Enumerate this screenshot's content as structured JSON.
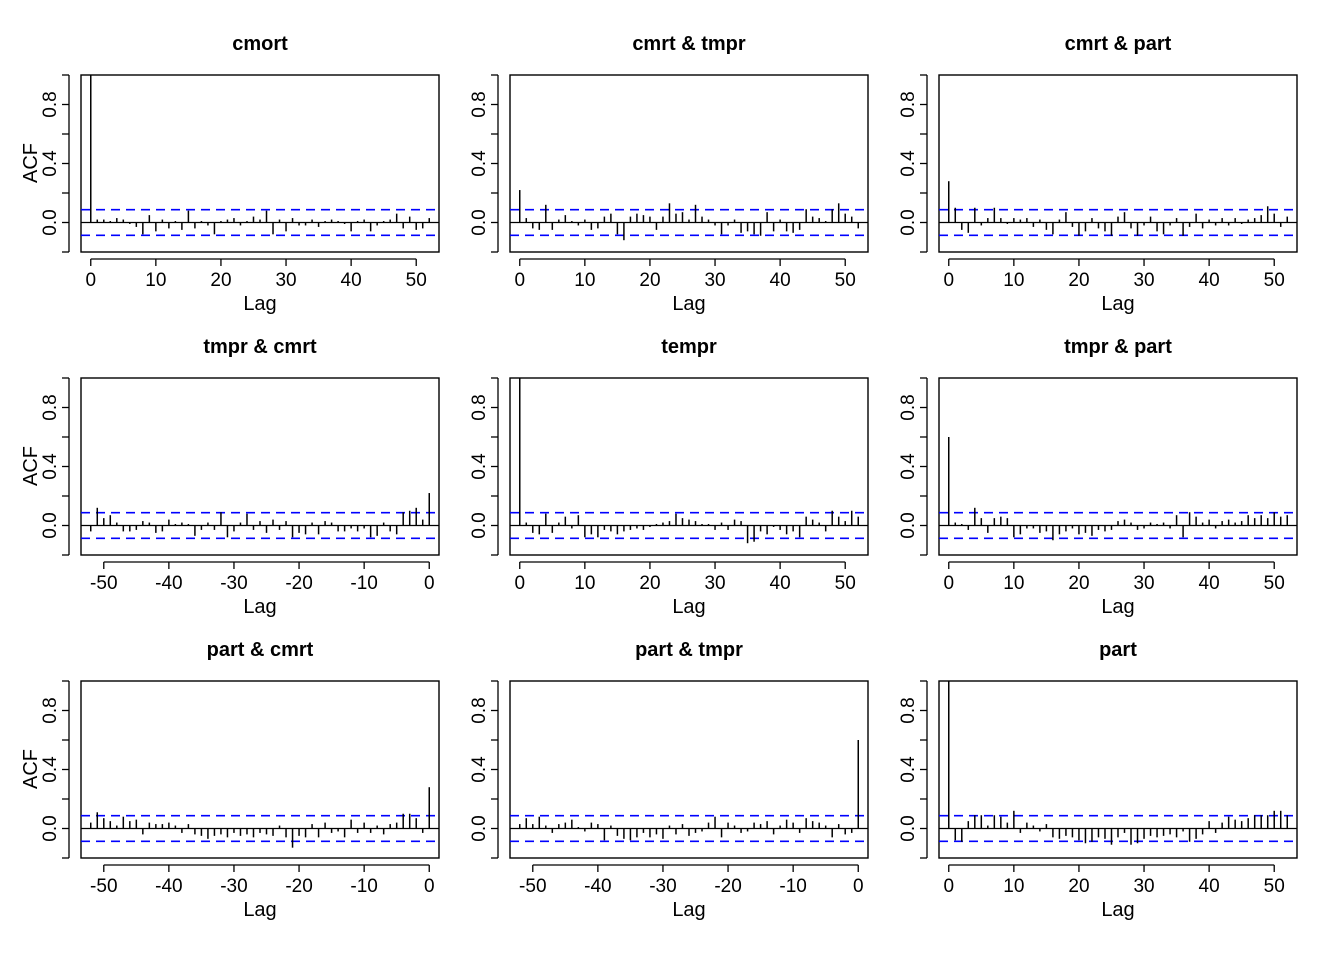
{
  "chart_data": [
    {
      "type": "bar",
      "title": "cmort",
      "xlabel": "Lag",
      "ylabel": "ACF",
      "xlim": [
        -1.5,
        53.5
      ],
      "ylim": [
        -0.2,
        1.0
      ],
      "x_ticks": [
        0,
        10,
        20,
        30,
        40,
        50
      ],
      "y_ticks": [
        0.0,
        0.4,
        0.8
      ],
      "conf_bound": 0.087,
      "x": [
        0,
        1,
        2,
        3,
        4,
        5,
        6,
        7,
        8,
        9,
        10,
        11,
        12,
        13,
        14,
        15,
        16,
        17,
        18,
        19,
        20,
        21,
        22,
        23,
        24,
        25,
        26,
        27,
        28,
        29,
        30,
        31,
        32,
        33,
        34,
        35,
        36,
        37,
        38,
        39,
        40,
        41,
        42,
        43,
        44,
        45,
        46,
        47,
        48,
        49,
        50,
        51,
        52
      ],
      "values": [
        1.0,
        0.02,
        0.02,
        0.01,
        0.03,
        0.02,
        -0.01,
        -0.03,
        -0.08,
        0.05,
        -0.06,
        0.02,
        -0.04,
        0.01,
        -0.05,
        0.08,
        -0.04,
        0.01,
        -0.02,
        -0.08,
        0.01,
        0.02,
        0.03,
        -0.02,
        0.01,
        0.04,
        0.02,
        0.08,
        -0.08,
        0.02,
        -0.06,
        0.03,
        -0.02,
        -0.02,
        0.02,
        -0.03,
        0.01,
        0.02,
        0.01,
        -0.01,
        -0.06,
        0.01,
        0.02,
        -0.06,
        -0.02,
        0.01,
        0.02,
        0.06,
        -0.04,
        0.04,
        -0.05,
        -0.04,
        0.03
      ]
    },
    {
      "type": "bar",
      "title": "cmrt & tmpr",
      "xlabel": "Lag",
      "ylabel": "",
      "xlim": [
        -1.5,
        53.5
      ],
      "ylim": [
        -0.2,
        1.0
      ],
      "x_ticks": [
        0,
        10,
        20,
        30,
        40,
        50
      ],
      "y_ticks": [
        0.0,
        0.4,
        0.8
      ],
      "conf_bound": 0.087,
      "x": [
        0,
        1,
        2,
        3,
        4,
        5,
        6,
        7,
        8,
        9,
        10,
        11,
        12,
        13,
        14,
        15,
        16,
        17,
        18,
        19,
        20,
        21,
        22,
        23,
        24,
        25,
        26,
        27,
        28,
        29,
        30,
        31,
        32,
        33,
        34,
        35,
        36,
        37,
        38,
        39,
        40,
        41,
        42,
        43,
        44,
        45,
        46,
        47,
        48,
        49,
        50,
        51,
        52
      ],
      "values": [
        0.22,
        0.03,
        -0.04,
        -0.05,
        0.12,
        -0.05,
        0.02,
        0.05,
        0.01,
        -0.02,
        0.02,
        -0.05,
        -0.04,
        0.04,
        0.06,
        -0.08,
        -0.12,
        0.04,
        0.06,
        0.05,
        0.04,
        -0.05,
        0.04,
        0.13,
        0.06,
        0.07,
        0.02,
        0.12,
        0.04,
        0.02,
        -0.02,
        -0.08,
        -0.02,
        0.02,
        -0.07,
        -0.06,
        -0.08,
        -0.09,
        0.07,
        -0.06,
        0.02,
        -0.06,
        -0.07,
        -0.05,
        0.09,
        0.04,
        0.03,
        0.01,
        0.09,
        0.13,
        0.06,
        0.04,
        -0.04
      ]
    },
    {
      "type": "bar",
      "title": "cmrt & part",
      "xlabel": "Lag",
      "ylabel": "",
      "xlim": [
        -1.5,
        53.5
      ],
      "ylim": [
        -0.2,
        1.0
      ],
      "x_ticks": [
        0,
        10,
        20,
        30,
        40,
        50
      ],
      "y_ticks": [
        0.0,
        0.4,
        0.8
      ],
      "conf_bound": 0.087,
      "x": [
        0,
        1,
        2,
        3,
        4,
        5,
        6,
        7,
        8,
        9,
        10,
        11,
        12,
        13,
        14,
        15,
        16,
        17,
        18,
        19,
        20,
        21,
        22,
        23,
        24,
        25,
        26,
        27,
        28,
        29,
        30,
        31,
        32,
        33,
        34,
        35,
        36,
        37,
        38,
        39,
        40,
        41,
        42,
        43,
        44,
        45,
        46,
        47,
        48,
        49,
        50,
        51,
        52
      ],
      "values": [
        0.28,
        0.1,
        -0.05,
        -0.07,
        0.1,
        -0.02,
        0.03,
        0.1,
        0.03,
        -0.01,
        0.03,
        0.02,
        0.03,
        -0.03,
        0.02,
        -0.05,
        -0.08,
        0.02,
        0.07,
        -0.03,
        -0.09,
        -0.06,
        0.03,
        -0.04,
        -0.06,
        -0.09,
        0.04,
        0.07,
        -0.04,
        -0.09,
        -0.02,
        0.04,
        -0.06,
        -0.08,
        -0.02,
        0.03,
        -0.09,
        -0.03,
        0.06,
        -0.04,
        0.02,
        -0.02,
        0.03,
        -0.02,
        0.03,
        -0.01,
        0.02,
        0.03,
        0.05,
        0.11,
        0.06,
        -0.03,
        0.04
      ]
    },
    {
      "type": "bar",
      "title": "tmpr & cmrt",
      "xlabel": "Lag",
      "ylabel": "ACF",
      "xlim": [
        -53.5,
        1.5
      ],
      "ylim": [
        -0.2,
        1.0
      ],
      "x_ticks": [
        -50,
        -40,
        -30,
        -20,
        -10,
        0
      ],
      "y_ticks": [
        0.0,
        0.4,
        0.8
      ],
      "conf_bound": 0.087,
      "x": [
        -52,
        -51,
        -50,
        -49,
        -48,
        -47,
        -46,
        -45,
        -44,
        -43,
        -42,
        -41,
        -40,
        -39,
        -38,
        -37,
        -36,
        -35,
        -34,
        -33,
        -32,
        -31,
        -30,
        -29,
        -28,
        -27,
        -26,
        -25,
        -24,
        -23,
        -22,
        -21,
        -20,
        -19,
        -18,
        -17,
        -16,
        -15,
        -14,
        -13,
        -12,
        -11,
        -10,
        -9,
        -8,
        -7,
        -6,
        -5,
        -4,
        -3,
        -2,
        -1,
        0
      ],
      "values": [
        -0.04,
        0.12,
        0.05,
        0.07,
        0.02,
        -0.04,
        -0.04,
        -0.03,
        0.03,
        0.02,
        -0.05,
        -0.04,
        0.04,
        0.01,
        0.02,
        0.01,
        -0.07,
        -0.03,
        0.02,
        -0.03,
        0.09,
        -0.08,
        -0.04,
        0.02,
        0.08,
        -0.03,
        0.03,
        -0.05,
        0.04,
        -0.03,
        0.03,
        -0.08,
        -0.05,
        -0.06,
        0.02,
        -0.06,
        0.03,
        0.02,
        -0.04,
        -0.04,
        -0.02,
        -0.04,
        -0.02,
        -0.08,
        -0.07,
        0.02,
        -0.04,
        -0.06,
        0.09,
        0.1,
        0.12,
        0.04,
        0.22
      ]
    },
    {
      "type": "bar",
      "title": "tempr",
      "xlabel": "Lag",
      "ylabel": "",
      "xlim": [
        -1.5,
        53.5
      ],
      "ylim": [
        -0.2,
        1.0
      ],
      "x_ticks": [
        0,
        10,
        20,
        30,
        40,
        50
      ],
      "y_ticks": [
        0.0,
        0.4,
        0.8
      ],
      "conf_bound": 0.087,
      "x": [
        0,
        1,
        2,
        3,
        4,
        5,
        6,
        7,
        8,
        9,
        10,
        11,
        12,
        13,
        14,
        15,
        16,
        17,
        18,
        19,
        20,
        21,
        22,
        23,
        24,
        25,
        26,
        27,
        28,
        29,
        30,
        31,
        32,
        33,
        34,
        35,
        36,
        37,
        38,
        39,
        40,
        41,
        42,
        43,
        44,
        45,
        46,
        47,
        48,
        49,
        50,
        51,
        52
      ],
      "values": [
        1.0,
        0.02,
        -0.05,
        -0.06,
        0.08,
        -0.05,
        0.02,
        0.06,
        -0.02,
        0.07,
        -0.08,
        -0.06,
        -0.08,
        -0.03,
        -0.04,
        -0.06,
        -0.04,
        -0.03,
        -0.02,
        -0.03,
        -0.01,
        0.01,
        0.02,
        0.03,
        0.08,
        0.05,
        0.04,
        0.03,
        0.01,
        0.01,
        -0.03,
        0.02,
        -0.03,
        0.04,
        0.03,
        -0.12,
        -0.11,
        -0.04,
        -0.06,
        -0.01,
        -0.03,
        -0.06,
        -0.04,
        -0.08,
        0.06,
        0.04,
        0.02,
        -0.04,
        0.1,
        0.06,
        0.03,
        0.1,
        0.06
      ]
    },
    {
      "type": "bar",
      "title": "tmpr & part",
      "xlabel": "Lag",
      "ylabel": "",
      "xlim": [
        -1.5,
        53.5
      ],
      "ylim": [
        -0.2,
        1.0
      ],
      "x_ticks": [
        0,
        10,
        20,
        30,
        40,
        50
      ],
      "y_ticks": [
        0.0,
        0.4,
        0.8
      ],
      "conf_bound": 0.087,
      "x": [
        0,
        1,
        2,
        3,
        4,
        5,
        6,
        7,
        8,
        9,
        10,
        11,
        12,
        13,
        14,
        15,
        16,
        17,
        18,
        19,
        20,
        21,
        22,
        23,
        24,
        25,
        26,
        27,
        28,
        29,
        30,
        31,
        32,
        33,
        34,
        35,
        36,
        37,
        38,
        39,
        40,
        41,
        42,
        43,
        44,
        45,
        46,
        47,
        48,
        49,
        50,
        51,
        52
      ],
      "values": [
        0.6,
        0.02,
        0.01,
        -0.03,
        0.12,
        0.05,
        -0.05,
        0.05,
        0.06,
        0.05,
        -0.08,
        -0.06,
        -0.02,
        -0.02,
        -0.05,
        -0.04,
        -0.1,
        -0.06,
        -0.04,
        -0.02,
        -0.06,
        -0.05,
        -0.07,
        -0.03,
        -0.04,
        -0.03,
        0.03,
        0.04,
        0.02,
        -0.03,
        -0.02,
        0.02,
        0.01,
        0.02,
        -0.02,
        0.07,
        -0.08,
        0.09,
        0.06,
        0.02,
        0.04,
        -0.02,
        0.03,
        0.04,
        0.02,
        0.03,
        0.07,
        0.05,
        0.07,
        0.05,
        0.09,
        0.06,
        0.07
      ]
    },
    {
      "type": "bar",
      "title": "part & cmrt",
      "xlabel": "Lag",
      "ylabel": "ACF",
      "xlim": [
        -53.5,
        1.5
      ],
      "ylim": [
        -0.2,
        1.0
      ],
      "x_ticks": [
        -50,
        -40,
        -30,
        -20,
        -10,
        0
      ],
      "y_ticks": [
        0.0,
        0.4,
        0.8
      ],
      "conf_bound": 0.087,
      "x": [
        -52,
        -51,
        -50,
        -49,
        -48,
        -47,
        -46,
        -45,
        -44,
        -43,
        -42,
        -41,
        -40,
        -39,
        -38,
        -37,
        -36,
        -35,
        -34,
        -33,
        -32,
        -31,
        -30,
        -29,
        -28,
        -27,
        -26,
        -25,
        -24,
        -23,
        -22,
        -21,
        -20,
        -19,
        -18,
        -17,
        -16,
        -15,
        -14,
        -13,
        -12,
        -11,
        -10,
        -9,
        -8,
        -7,
        -6,
        -5,
        -4,
        -3,
        -2,
        -1,
        0
      ],
      "values": [
        0.04,
        0.11,
        0.07,
        0.05,
        0.02,
        0.08,
        0.05,
        0.06,
        -0.04,
        0.04,
        0.03,
        0.03,
        0.04,
        0.02,
        -0.03,
        0.03,
        -0.04,
        -0.05,
        -0.07,
        -0.05,
        -0.04,
        -0.06,
        -0.03,
        -0.05,
        -0.04,
        -0.06,
        -0.03,
        -0.04,
        -0.05,
        0.02,
        -0.06,
        -0.13,
        -0.05,
        -0.06,
        0.03,
        -0.06,
        0.04,
        -0.03,
        -0.02,
        -0.06,
        0.06,
        -0.03,
        0.04,
        -0.03,
        0.02,
        -0.04,
        0.03,
        0.04,
        0.1,
        0.1,
        0.07,
        -0.03,
        0.28
      ]
    },
    {
      "type": "bar",
      "title": "part & tmpr",
      "xlabel": "Lag",
      "ylabel": "",
      "xlim": [
        -53.5,
        1.5
      ],
      "ylim": [
        -0.2,
        1.0
      ],
      "x_ticks": [
        -50,
        -40,
        -30,
        -20,
        -10,
        0
      ],
      "y_ticks": [
        0.0,
        0.4,
        0.8
      ],
      "conf_bound": 0.087,
      "x": [
        -52,
        -51,
        -50,
        -49,
        -48,
        -47,
        -46,
        -45,
        -44,
        -43,
        -42,
        -41,
        -40,
        -39,
        -38,
        -37,
        -36,
        -35,
        -34,
        -33,
        -32,
        -31,
        -30,
        -29,
        -28,
        -27,
        -26,
        -25,
        -24,
        -23,
        -22,
        -21,
        -20,
        -19,
        -18,
        -17,
        -16,
        -15,
        -14,
        -13,
        -12,
        -11,
        -10,
        -9,
        -8,
        -7,
        -6,
        -5,
        -4,
        -3,
        -2,
        -1,
        0
      ],
      "values": [
        0.03,
        0.07,
        0.03,
        0.08,
        0.02,
        -0.03,
        0.03,
        0.04,
        0.06,
        0.01,
        -0.02,
        0.04,
        0.03,
        -0.08,
        0.02,
        -0.05,
        -0.07,
        -0.08,
        -0.06,
        -0.03,
        -0.06,
        -0.04,
        -0.07,
        0.02,
        -0.04,
        0.03,
        -0.05,
        -0.03,
        -0.02,
        0.04,
        0.08,
        -0.06,
        0.04,
        0.02,
        -0.03,
        -0.02,
        0.04,
        0.03,
        0.05,
        -0.04,
        0.02,
        0.06,
        0.04,
        -0.03,
        0.07,
        0.05,
        0.04,
        0.02,
        -0.06,
        0.03,
        -0.04,
        -0.03,
        0.6
      ]
    },
    {
      "type": "bar",
      "title": "part",
      "xlabel": "Lag",
      "ylabel": "",
      "xlim": [
        -1.5,
        53.5
      ],
      "ylim": [
        -0.2,
        1.0
      ],
      "x_ticks": [
        0,
        10,
        20,
        30,
        40,
        50
      ],
      "y_ticks": [
        0.0,
        0.4,
        0.8
      ],
      "conf_bound": 0.087,
      "x": [
        0,
        1,
        2,
        3,
        4,
        5,
        6,
        7,
        8,
        9,
        10,
        11,
        12,
        13,
        14,
        15,
        16,
        17,
        18,
        19,
        20,
        21,
        22,
        23,
        24,
        25,
        26,
        27,
        28,
        29,
        30,
        31,
        32,
        33,
        34,
        35,
        36,
        37,
        38,
        39,
        40,
        41,
        42,
        43,
        44,
        45,
        46,
        47,
        48,
        49,
        50,
        51,
        52
      ],
      "values": [
        1.0,
        -0.08,
        -0.09,
        0.05,
        0.09,
        0.09,
        0.02,
        0.09,
        0.08,
        0.04,
        0.12,
        -0.03,
        0.04,
        0.02,
        -0.02,
        0.03,
        -0.06,
        -0.07,
        -0.05,
        -0.06,
        -0.08,
        -0.1,
        -0.09,
        -0.06,
        -0.07,
        -0.11,
        -0.06,
        -0.03,
        -0.11,
        -0.1,
        -0.07,
        -0.05,
        -0.06,
        -0.05,
        -0.04,
        -0.06,
        -0.02,
        -0.09,
        -0.07,
        -0.04,
        0.05,
        -0.03,
        0.04,
        0.08,
        0.06,
        0.05,
        0.07,
        0.09,
        0.09,
        0.09,
        0.12,
        0.12,
        0.09
      ]
    }
  ],
  "style": {
    "bar_color": "#000000",
    "conf_color": "#0000ff",
    "axis_color": "#000000"
  }
}
